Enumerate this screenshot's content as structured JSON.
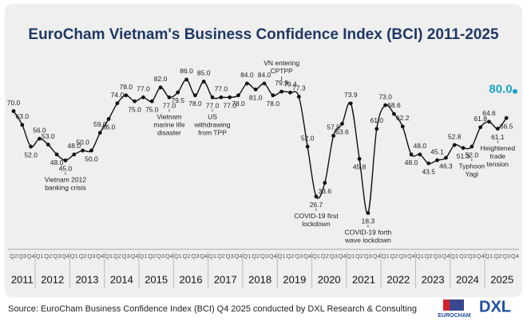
{
  "chart_data": {
    "type": "line",
    "title": "EuroCham Vietnam's Business Confidence Index (BCI) 2011-2025",
    "categories": [
      "Q2",
      "Q3",
      "Q4",
      "Q1",
      "Q2",
      "Q3",
      "Q4",
      "Q1",
      "Q2",
      "Q3",
      "Q4",
      "Q1",
      "Q2",
      "Q3",
      "Q4",
      "Q1",
      "Q2",
      "Q3",
      "Q4",
      "Q1",
      "Q2",
      "Q3",
      "Q4",
      "Q1",
      "Q2",
      "Q3",
      "Q4",
      "Q1",
      "Q2",
      "Q3",
      "Q4",
      "Q1",
      "Q2",
      "Q3",
      "Q4",
      "Q1",
      "Q2",
      "Q3",
      "Q4",
      "Q1",
      "Q2",
      "Q3",
      "Q4",
      "Q1",
      "Q2",
      "Q3",
      "Q4",
      "Q1",
      "Q2",
      "Q3",
      "Q4",
      "Q1",
      "Q2",
      "Q3",
      "Q4",
      "Q1",
      "Q2",
      "Q3",
      "Q4"
    ],
    "years": [
      "2011",
      "2012",
      "2013",
      "2014",
      "2015",
      "2016",
      "2017",
      "2018",
      "2019",
      "2020",
      "2021",
      "2022",
      "2023",
      "2024",
      "2025"
    ],
    "values": [
      70,
      63,
      52,
      56,
      53,
      48,
      45,
      48,
      50,
      50,
      59,
      66,
      74,
      78,
      75,
      77,
      75,
      82,
      77,
      79.5,
      86,
      78,
      85,
      77,
      77,
      77,
      78,
      84,
      81,
      84,
      78,
      79.9,
      79.4,
      77.3,
      52,
      26.7,
      33.6,
      57.5,
      63.6,
      73.9,
      45.8,
      18.3,
      61,
      73,
      68.6,
      62.2,
      48,
      48,
      43.5,
      45.1,
      46.3,
      52.8,
      51.3,
      52,
      61.8,
      64.6,
      61.1,
      66.5,
      80
    ],
    "value_labels": [
      "70.0",
      "63.0",
      "52.0",
      "56.0",
      "53.0",
      "48.0",
      "45.0",
      "48.0",
      "50.0",
      "50.0",
      "59.0",
      "66.0",
      "74.0",
      "78.0",
      "75.0",
      "77.0",
      "75.0",
      "82.0",
      "77.0",
      "79.5",
      "86.0",
      "78.0",
      "85.0",
      "77.0",
      "77.0",
      "77.0",
      "78.0",
      "84.0",
      "81.0",
      "84.0",
      "78.0",
      "79.9",
      "79.4",
      "77.3",
      "52.0",
      "26.7",
      "33.6",
      "57.5",
      "63.6",
      "73.9",
      "45.8",
      "18.3",
      "61.0",
      "73.0",
      "68.6",
      "62.2",
      "48.0",
      "48.0",
      "43.5",
      "45.1",
      "46.3",
      "52.8",
      "51.3",
      "52.0",
      "61.8",
      "64.6",
      "61.1",
      "66.5",
      "80.0"
    ],
    "color": "#111111",
    "highlight_color": "#1aa3c9",
    "ylim": [
      10,
      90
    ],
    "annotations": [
      [
        "Vietnam 2012",
        "banking crisis"
      ],
      [
        "Vietnam",
        "marine life",
        "disaster"
      ],
      [
        "US",
        "withdrawing",
        "from TPP"
      ],
      [
        "VN entering",
        "CPTPP"
      ],
      [
        "COVID-19 first",
        "lockdown"
      ],
      [
        "COVID-19 forth",
        "wave lockdown"
      ],
      [
        "Typhoon",
        "Yagi"
      ],
      [
        "Heightened",
        "trade",
        "tension"
      ]
    ],
    "source": "Source: EuroCham Business Confidence Index (BCI) Q4 2025 conducted by DXL Research & Consulting",
    "logo_labels": [
      "EUROCHAM",
      "DXL"
    ]
  }
}
